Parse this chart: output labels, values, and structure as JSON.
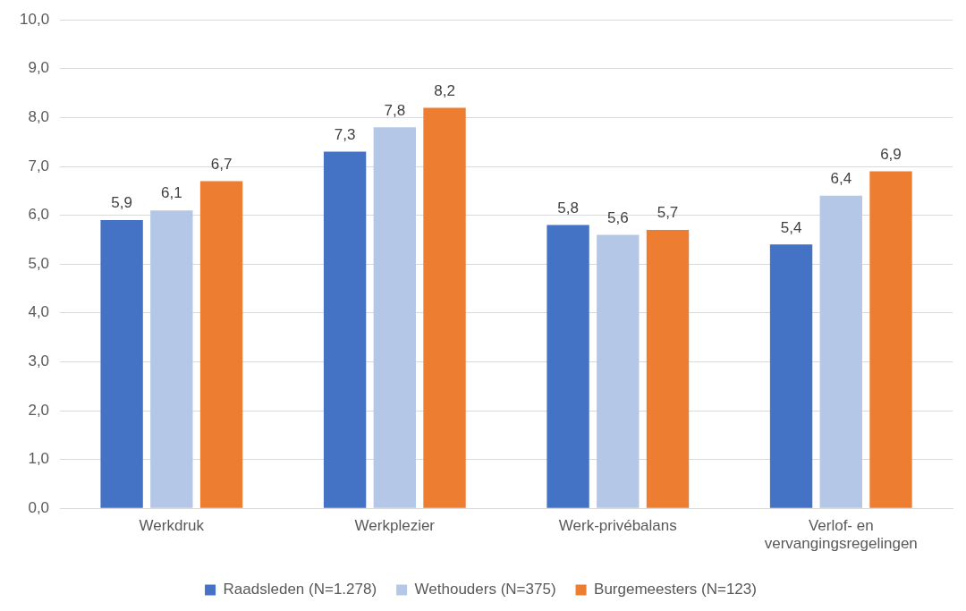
{
  "chart_data": {
    "type": "bar",
    "categories": [
      "Werkdruk",
      "Werkplezier",
      "Werk-privébalans",
      "Verlof- en vervangingsregelingen"
    ],
    "series": [
      {
        "name": "Raadsleden (N=1.278)",
        "color": "#4472c4",
        "values": [
          5.9,
          7.3,
          5.8,
          5.4
        ],
        "value_labels": [
          "5,9",
          "7,3",
          "5,8",
          "5,4"
        ]
      },
      {
        "name": "Wethouders (N=375)",
        "color": "#b4c7e7",
        "values": [
          6.1,
          7.8,
          5.6,
          6.4
        ],
        "value_labels": [
          "6,1",
          "7,8",
          "5,6",
          "6,4"
        ]
      },
      {
        "name": "Burgemeesters (N=123)",
        "color": "#ed7d31",
        "values": [
          6.7,
          8.2,
          5.7,
          6.9
        ],
        "value_labels": [
          "6,7",
          "8,2",
          "5,7",
          "6,9"
        ]
      }
    ],
    "ylim": [
      0,
      10
    ],
    "yticks": [
      {
        "value": 0,
        "label": "0,0"
      },
      {
        "value": 1,
        "label": "1,0"
      },
      {
        "value": 2,
        "label": "2,0"
      },
      {
        "value": 3,
        "label": "3,0"
      },
      {
        "value": 4,
        "label": "4,0"
      },
      {
        "value": 5,
        "label": "5,0"
      },
      {
        "value": 6,
        "label": "6,0"
      },
      {
        "value": 7,
        "label": "7,0"
      },
      {
        "value": 8,
        "label": "8,0"
      },
      {
        "value": 9,
        "label": "9,0"
      },
      {
        "value": 10,
        "label": "10,0"
      }
    ],
    "grid": "y",
    "legend": "bottom"
  }
}
